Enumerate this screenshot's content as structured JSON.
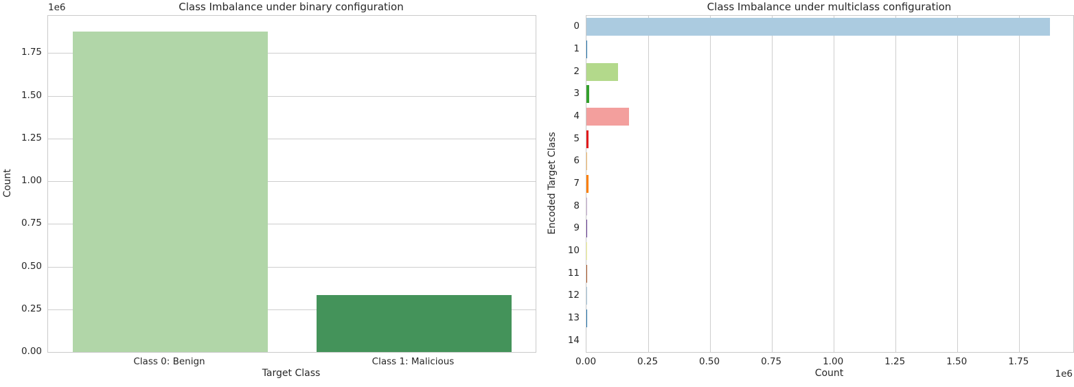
{
  "style": {
    "background": "#ffffff",
    "text_color": "#262626",
    "grid_color": "#cdcdcd",
    "spine_color": "#c9c9c9"
  },
  "charts": [
    {
      "title": "Class Imbalance under binary configuration",
      "xlabel": "Target Class",
      "ylabel": "Count",
      "scale_offset_label": "1e6",
      "chart_data": {
        "type": "bar",
        "orientation": "vertical",
        "categories": [
          "Class 0: Benign",
          "Class 1: Malicious"
        ],
        "values": [
          1875000,
          333000
        ],
        "bar_colors": [
          "#b1d6a8",
          "#44935a"
        ],
        "value_axis_max": 1968750,
        "value_ticks": {
          "values": [
            0,
            250000,
            500000,
            750000,
            1000000,
            1250000,
            1500000,
            1750000
          ],
          "labels": [
            "0.00",
            "0.25",
            "0.50",
            "0.75",
            "1.00",
            "1.25",
            "1.50",
            "1.75"
          ]
        },
        "grid": true,
        "legend": null
      }
    },
    {
      "title": "Class Imbalance under multiclass configuration",
      "xlabel": "Count",
      "ylabel": "Encoded Target Class",
      "scale_offset_label": "1e6",
      "chart_data": {
        "type": "bar",
        "orientation": "horizontal",
        "categories": [
          "0",
          "1",
          "2",
          "3",
          "4",
          "5",
          "6",
          "7",
          "8",
          "9",
          "10",
          "11",
          "12",
          "13",
          "14"
        ],
        "values": [
          1875000,
          2000,
          128000,
          11000,
          173000,
          7000,
          4000,
          7000,
          1200,
          900,
          700,
          500,
          400,
          300,
          200
        ],
        "bar_colors": [
          "#abcbe0",
          "#2477b2",
          "#b3d98b",
          "#33a02c",
          "#f39f9d",
          "#e31a1c",
          "#fdbf6f",
          "#ff7f00",
          "#cab2d6",
          "#6a3d9a",
          "#ffff99",
          "#b15928",
          "#abcbe0",
          "#2477b2",
          "#b3d98b"
        ],
        "value_axis_max": 1968750,
        "value_ticks": {
          "values": [
            0,
            250000,
            500000,
            750000,
            1000000,
            1250000,
            1500000,
            1750000
          ],
          "labels": [
            "0.00",
            "0.25",
            "0.50",
            "0.75",
            "1.00",
            "1.25",
            "1.50",
            "1.75"
          ]
        },
        "grid": true,
        "legend": null
      }
    }
  ]
}
